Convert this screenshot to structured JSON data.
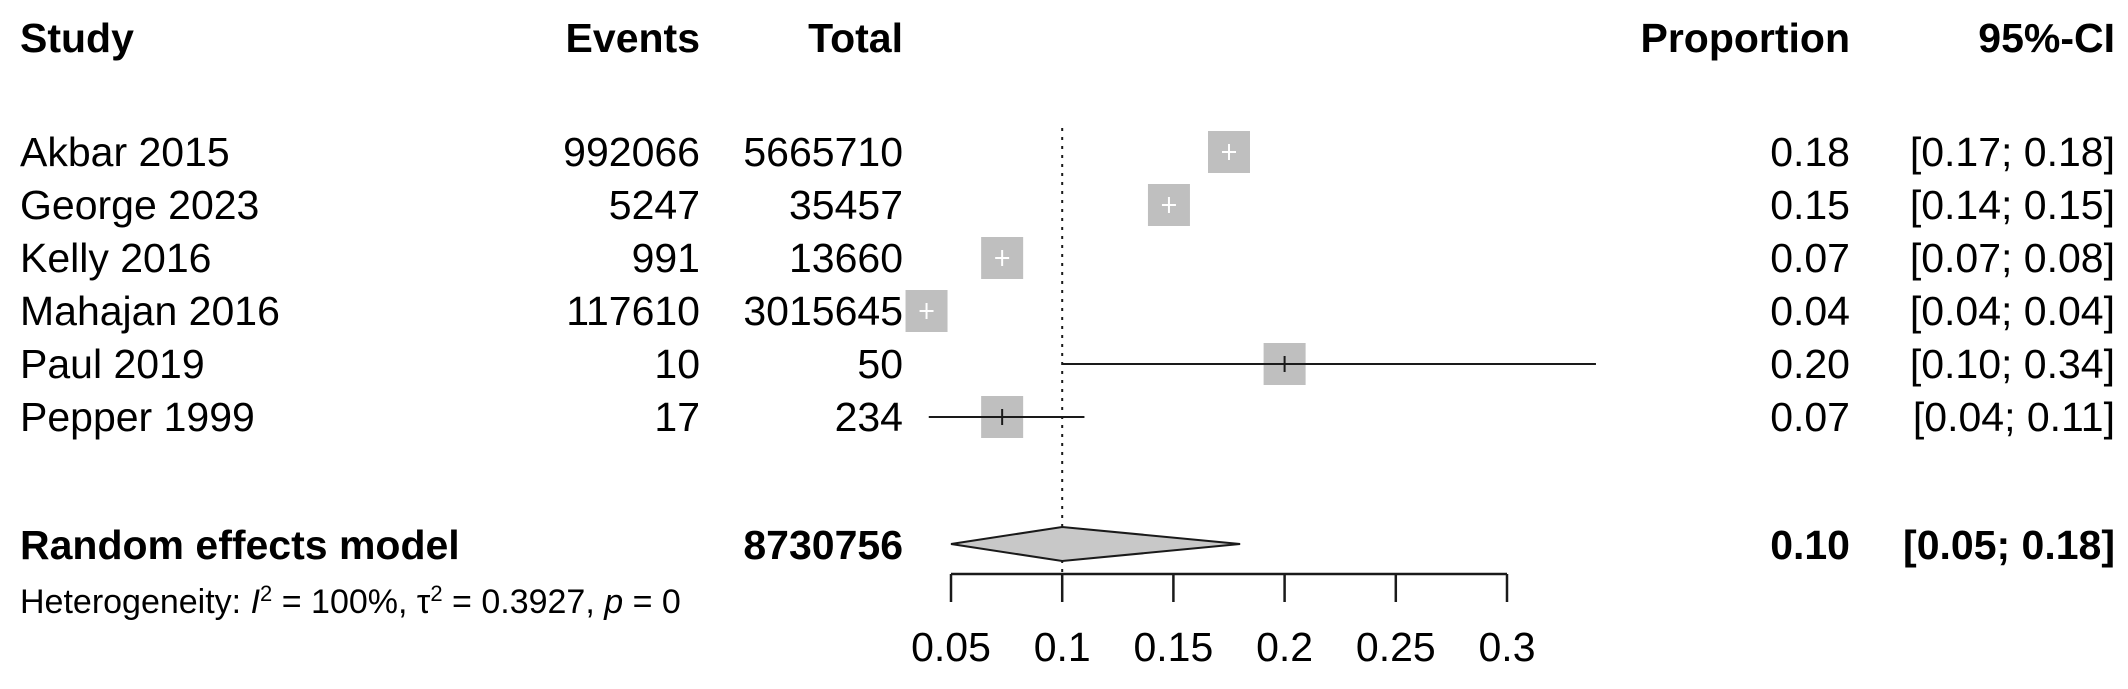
{
  "chart_data": {
    "type": "forest",
    "headers": {
      "study": "Study",
      "events": "Events",
      "total": "Total",
      "proportion": "Proportion",
      "ci": "95%-CI"
    },
    "studies": [
      {
        "name": "Akbar 2015",
        "events": "992066",
        "total": "5665710",
        "prop": 0.175,
        "lower": 0.17,
        "upper": 0.18,
        "prop_text": "0.18",
        "ci_text": "[0.17; 0.18]"
      },
      {
        "name": "George 2023",
        "events": "5247",
        "total": "35457",
        "prop": 0.148,
        "lower": 0.14,
        "upper": 0.15,
        "prop_text": "0.15",
        "ci_text": "[0.14; 0.15]"
      },
      {
        "name": "Kelly 2016",
        "events": "991",
        "total": "13660",
        "prop": 0.073,
        "lower": 0.07,
        "upper": 0.08,
        "prop_text": "0.07",
        "ci_text": "[0.07; 0.08]"
      },
      {
        "name": "Mahajan 2016",
        "events": "117610",
        "total": "3015645",
        "prop": 0.039,
        "lower": 0.04,
        "upper": 0.04,
        "prop_text": "0.04",
        "ci_text": "[0.04; 0.04]"
      },
      {
        "name": "Paul 2019",
        "events": "10",
        "total": "50",
        "prop": 0.2,
        "lower": 0.1,
        "upper": 0.34,
        "prop_text": "0.20",
        "ci_text": "[0.10; 0.34]"
      },
      {
        "name": "Pepper 1999",
        "events": "17",
        "total": "234",
        "prop": 0.073,
        "lower": 0.04,
        "upper": 0.11,
        "prop_text": "0.07",
        "ci_text": "[0.04; 0.11]"
      }
    ],
    "pooled": {
      "name": "Random effects model",
      "total": "8730756",
      "prop": 0.1,
      "lower": 0.05,
      "upper": 0.18,
      "prop_text": "0.10",
      "ci_text": "[0.05; 0.18]"
    },
    "heterogeneity": {
      "prefix": "Heterogeneity: ",
      "I2_symbol": "I",
      "I2_value": " = 100%, ",
      "tau2_symbol": "τ",
      "tau2_value": " = 0.3927, ",
      "p_symbol": "p",
      "p_value": " = 0"
    },
    "x_ticks": [
      "0.05",
      "0.1",
      "0.15",
      "0.2",
      "0.25",
      "0.3"
    ],
    "x_tick_values": [
      0.05,
      0.1,
      0.15,
      0.2,
      0.25,
      0.3
    ],
    "reference_line": 0.1,
    "colors": {
      "box": "#bfbfbf",
      "diamond": "#c8c8c8",
      "line": "#1a1a1a"
    }
  }
}
